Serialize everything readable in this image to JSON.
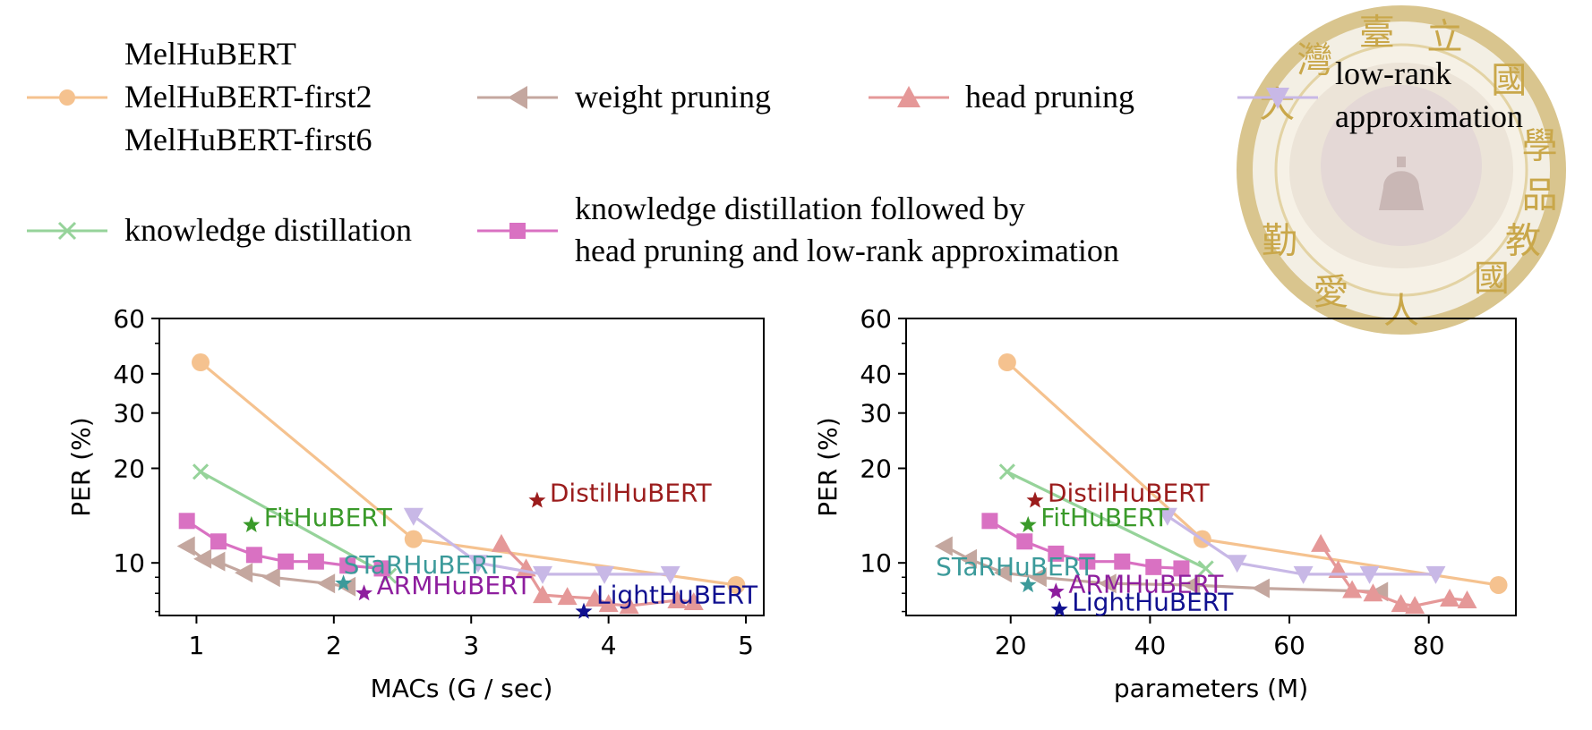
{
  "colors": {
    "melhubert": "#f5c28f",
    "weight_pruning": "#c4a79f",
    "head_pruning": "#e59898",
    "low_rank": "#c8b8e6",
    "kd": "#96d39a",
    "kd_combo": "#d971c2",
    "distil": "#9b1c1c",
    "fit": "#3a9a2a",
    "starhubert": "#3b9a9a",
    "arm": "#8e1e9e",
    "light": "#101090",
    "seal_gold": "#c9a74a",
    "seal_maroon": "#a8848a"
  },
  "legend": {
    "melhubert_line1": "MelHuBERT",
    "melhubert_line2": "MelHuBERT-first2",
    "melhubert_line3": "MelHuBERT-first6",
    "weight_pruning": "weight pruning",
    "head_pruning": "head pruning",
    "low_rank_line1": "low-rank",
    "low_rank_line2": "approximation",
    "kd": "knowledge distillation",
    "kd_combo_line1": "knowledge distillation followed by",
    "kd_combo_line2": "head pruning and low-rank approximation"
  },
  "watermark": {
    "chars": [
      "大",
      "灣",
      "臺",
      "立",
      "國",
      "學",
      "人",
      "愛",
      "國",
      "教",
      "品",
      "勤"
    ]
  },
  "chart_data": [
    {
      "type": "line",
      "xlabel": "MACs (G / sec)",
      "ylabel": "PER (%)",
      "xlim": [
        0.73,
        5.13
      ],
      "ylim": [
        6.8,
        60
      ],
      "yscale": "log",
      "xticks": [
        1,
        2,
        3,
        4,
        5
      ],
      "yticks": [
        10,
        20,
        30,
        40,
        60
      ],
      "series": [
        {
          "name": "MelHuBERT",
          "key": "melhubert",
          "marker": "circle",
          "x": [
            1.03,
            2.58,
            4.93
          ],
          "y": [
            43.5,
            11.9,
            8.5
          ]
        },
        {
          "name": "weight pruning",
          "key": "weight_pruning",
          "marker": "tri-left",
          "x": [
            0.93,
            1.05,
            1.15,
            1.35,
            1.55,
            1.95,
            2.1
          ],
          "y": [
            11.3,
            10.3,
            10.1,
            9.3,
            9.0,
            8.6,
            8.4
          ]
        },
        {
          "name": "head pruning",
          "key": "head_pruning",
          "marker": "tri-up",
          "x": [
            3.22,
            3.4,
            3.52,
            3.7,
            3.9,
            4.0,
            4.15,
            4.5,
            4.62
          ],
          "y": [
            11.5,
            9.6,
            7.9,
            7.8,
            7.7,
            7.4,
            7.3,
            7.6,
            7.5
          ]
        },
        {
          "name": "low-rank approximation",
          "key": "low_rank",
          "marker": "tri-down",
          "x": [
            2.58,
            3.05,
            3.52,
            3.97,
            4.45
          ],
          "y": [
            14.1,
            10.0,
            9.2,
            9.2,
            9.2
          ]
        },
        {
          "name": "knowledge distillation",
          "key": "kd",
          "marker": "x",
          "x": [
            1.03,
            2.4
          ],
          "y": [
            19.5,
            9.1
          ]
        },
        {
          "name": "knowledge distillation followed by head pruning and low-rank approximation",
          "key": "kd_combo",
          "marker": "square",
          "x": [
            0.93,
            1.16,
            1.42,
            1.65,
            1.87,
            2.1,
            2.35
          ],
          "y": [
            13.6,
            11.7,
            10.6,
            10.1,
            10.1,
            9.8,
            9.6
          ]
        }
      ],
      "annotations": [
        {
          "text": "DistilHuBERT",
          "key": "distil",
          "x": 3.48,
          "y": 15.8
        },
        {
          "text": "FitHuBERT",
          "key": "fit",
          "x": 1.4,
          "y": 13.2
        },
        {
          "text": "STaRHuBERT",
          "key": "starhubert",
          "x": 2.07,
          "y": 8.6
        },
        {
          "text": "ARMHuBERT",
          "key": "arm",
          "x": 2.22,
          "y": 8.0
        },
        {
          "text": "LightHuBERT",
          "key": "light",
          "x": 3.82,
          "y": 7.0
        }
      ]
    },
    {
      "type": "line",
      "xlabel": "parameters (M)",
      "ylabel": "PER (%)",
      "xlim": [
        5,
        92.5
      ],
      "ylim": [
        6.8,
        60
      ],
      "yscale": "log",
      "xticks": [
        20,
        40,
        60,
        80
      ],
      "yticks": [
        10,
        20,
        30,
        40,
        60
      ],
      "series": [
        {
          "name": "MelHuBERT",
          "key": "melhubert",
          "marker": "circle",
          "x": [
            19.5,
            47.5,
            90
          ],
          "y": [
            43.5,
            11.9,
            8.5
          ]
        },
        {
          "name": "weight pruning",
          "key": "weight_pruning",
          "marker": "tri-left",
          "x": [
            10.5,
            14,
            19,
            24,
            34,
            46,
            56,
            73
          ],
          "y": [
            11.3,
            10.3,
            9.3,
            9.0,
            8.6,
            8.5,
            8.3,
            8.1
          ]
        },
        {
          "name": "head pruning",
          "key": "head_pruning",
          "marker": "tri-up",
          "x": [
            64.5,
            67,
            69,
            72,
            76,
            78,
            83,
            85.5
          ],
          "y": [
            11.5,
            9.5,
            8.2,
            8.0,
            7.4,
            7.3,
            7.7,
            7.6
          ]
        },
        {
          "name": "low-rank approximation",
          "key": "low_rank",
          "marker": "tri-down",
          "x": [
            42.5,
            52.5,
            62,
            71.5,
            81
          ],
          "y": [
            14.1,
            10.0,
            9.2,
            9.2,
            9.2
          ]
        },
        {
          "name": "knowledge distillation",
          "key": "kd",
          "marker": "x",
          "x": [
            19.5,
            48
          ],
          "y": [
            19.5,
            9.6
          ]
        },
        {
          "name": "knowledge distillation followed by head pruning and low-rank approximation",
          "key": "kd_combo",
          "marker": "square",
          "x": [
            17,
            22,
            26.5,
            31,
            36,
            40.5,
            44.5
          ],
          "y": [
            13.6,
            11.7,
            10.7,
            10.1,
            10.1,
            9.7,
            9.6
          ]
        }
      ],
      "annotations": [
        {
          "text": "DistilHuBERT",
          "key": "distil",
          "x": 23.5,
          "y": 15.8
        },
        {
          "text": "FitHuBERT",
          "key": "fit",
          "x": 22.5,
          "y": 13.2
        },
        {
          "text": "STaRHuBERT",
          "key": "starhubert",
          "x": 22.5,
          "y": 8.5
        },
        {
          "text": "ARMHuBERT",
          "key": "arm",
          "x": 26.5,
          "y": 8.1
        },
        {
          "text": "LightHuBERT",
          "key": "light",
          "x": 27,
          "y": 7.1
        }
      ]
    }
  ]
}
